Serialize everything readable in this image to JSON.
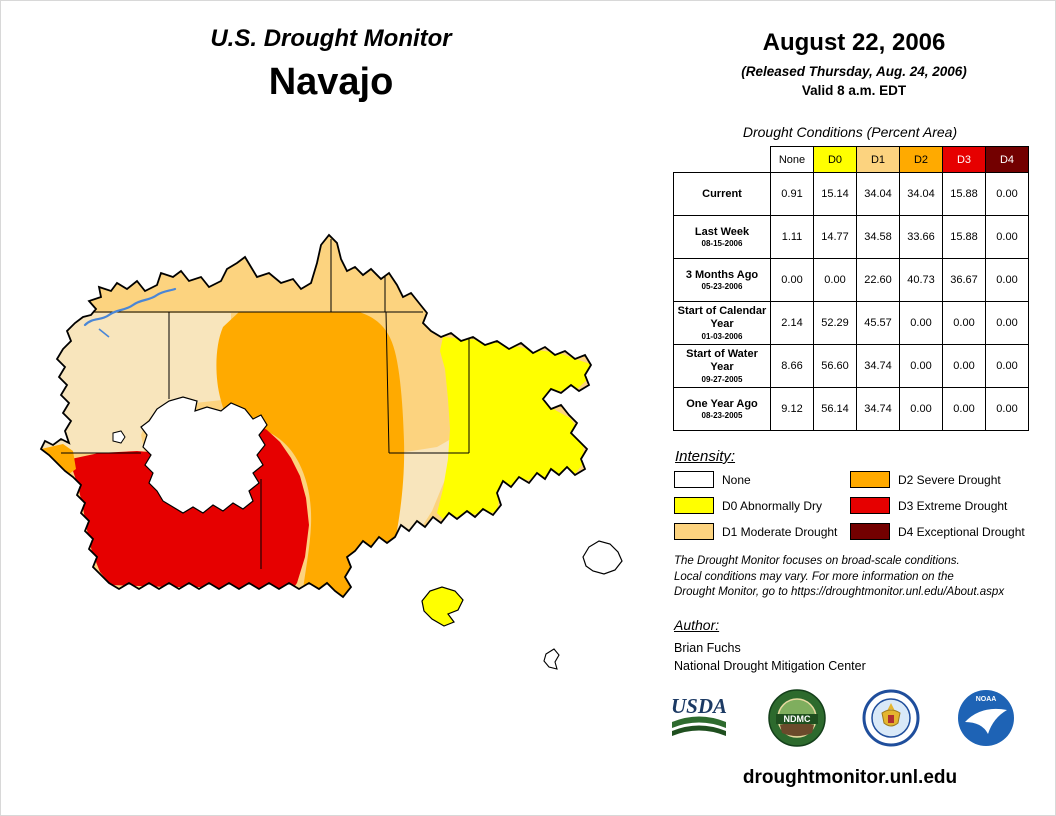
{
  "header": {
    "title": "U.S. Drought Monitor",
    "region": "Navajo",
    "date": "August 22, 2006",
    "released": "(Released Thursday, Aug. 24, 2006)",
    "valid": "Valid 8 a.m. EDT"
  },
  "table": {
    "title": "Drought Conditions (Percent Area)",
    "columns": [
      {
        "label": "None",
        "bg": "#FFFFFF",
        "fg": "#000000"
      },
      {
        "label": "D0",
        "bg": "#FFFF00",
        "fg": "#000000"
      },
      {
        "label": "D1",
        "bg": "#FCD37F",
        "fg": "#000000"
      },
      {
        "label": "D2",
        "bg": "#FFAA00",
        "fg": "#000000"
      },
      {
        "label": "D3",
        "bg": "#E60000",
        "fg": "#FFFFFF"
      },
      {
        "label": "D4",
        "bg": "#730000",
        "fg": "#FFFFFF"
      }
    ],
    "rows": [
      {
        "label": "Current",
        "sub": "",
        "values": [
          "0.91",
          "15.14",
          "34.04",
          "34.04",
          "15.88",
          "0.00"
        ]
      },
      {
        "label": "Last Week",
        "sub": "08-15-2006",
        "values": [
          "1.11",
          "14.77",
          "34.58",
          "33.66",
          "15.88",
          "0.00"
        ]
      },
      {
        "label": "3 Months Ago",
        "sub": "05-23-2006",
        "values": [
          "0.00",
          "0.00",
          "22.60",
          "40.73",
          "36.67",
          "0.00"
        ]
      },
      {
        "label": "Start of Calendar Year",
        "sub": "01-03-2006",
        "values": [
          "2.14",
          "52.29",
          "45.57",
          "0.00",
          "0.00",
          "0.00"
        ]
      },
      {
        "label": "Start of Water Year",
        "sub": "09-27-2005",
        "values": [
          "8.66",
          "56.60",
          "34.74",
          "0.00",
          "0.00",
          "0.00"
        ]
      },
      {
        "label": "One Year Ago",
        "sub": "08-23-2005",
        "values": [
          "9.12",
          "56.14",
          "34.74",
          "0.00",
          "0.00",
          "0.00"
        ]
      }
    ]
  },
  "legend": {
    "title": "Intensity:",
    "items": [
      {
        "code": "none",
        "label": "None",
        "color": "#FFFFFF"
      },
      {
        "code": "d0",
        "label": "D0 Abnormally Dry",
        "color": "#FFFF00"
      },
      {
        "code": "d1",
        "label": "D1 Moderate Drought",
        "color": "#FCD37F"
      },
      {
        "code": "d2",
        "label": "D2 Severe Drought",
        "color": "#FFAA00"
      },
      {
        "code": "d3",
        "label": "D3 Extreme Drought",
        "color": "#E60000"
      },
      {
        "code": "d4",
        "label": "D4 Exceptional Drought",
        "color": "#730000"
      }
    ]
  },
  "disclaimer": [
    "The Drought Monitor focuses on broad-scale conditions.",
    "Local conditions may vary. For more information on the",
    "Drought Monitor, go to https://droughtmonitor.unl.edu/About.aspx"
  ],
  "author": {
    "heading": "Author:",
    "name": "Brian Fuchs",
    "org": "National Drought Mitigation Center"
  },
  "footer": {
    "url": "droughtmonitor.unl.edu"
  },
  "logos": {
    "usda": "USDA",
    "ndmc": "NDMC",
    "noaa": "NOAA"
  },
  "map": {
    "d1_light": "#F8E5BC",
    "river": "#4A86D6",
    "outline": "#000000"
  }
}
